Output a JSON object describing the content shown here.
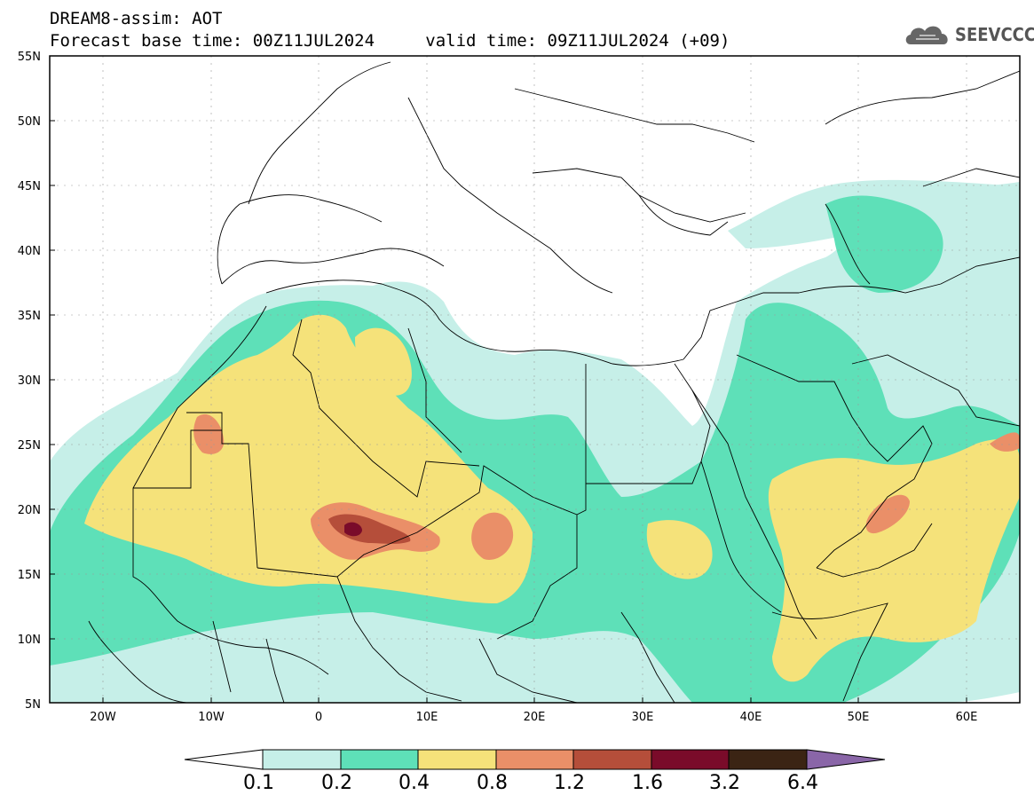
{
  "header": {
    "line1": "DREAM8-assim: AOT",
    "base_time": "Forecast base time: 00Z11JUL2024",
    "valid_time": "valid time: 09Z11JUL2024 (+09)"
  },
  "logo": {
    "text": "SEEVCCC",
    "icon": "cloud-icon"
  },
  "axes": {
    "lat_labels": [
      "55N",
      "50N",
      "45N",
      "40N",
      "35N",
      "30N",
      "25N",
      "20N",
      "15N",
      "10N",
      "5N"
    ],
    "lon_labels": [
      "20W",
      "10W",
      "0",
      "10E",
      "20E",
      "30E",
      "40E",
      "50E",
      "60E"
    ]
  },
  "colorbar": {
    "labels": [
      "0.1",
      "0.2",
      "0.4",
      "0.8",
      "1.2",
      "1.6",
      "3.2",
      "6.4"
    ],
    "colors": [
      "#c6efe8",
      "#5ee0b8",
      "#f5e27a",
      "#ea8f68",
      "#b54e3a",
      "#7a0b2a",
      "#3b2414",
      "#8a66a8"
    ]
  },
  "colors": {
    "c1": "#c6efe8",
    "c2": "#5ee0b8",
    "c3": "#f5e27a",
    "c4": "#ea8f68",
    "c5": "#b54e3a",
    "c6": "#7a0b2a"
  }
}
